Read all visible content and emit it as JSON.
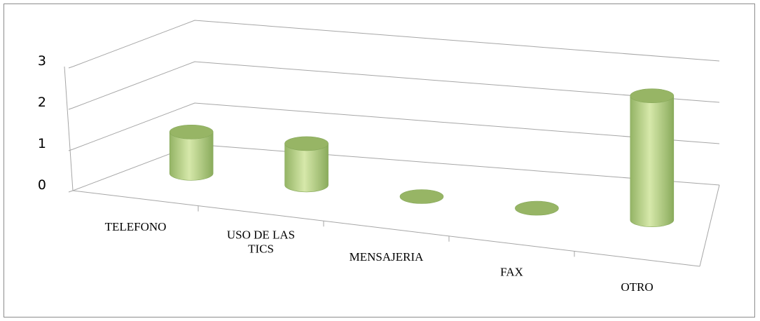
{
  "chart_data": {
    "type": "bar",
    "title": "",
    "xlabel": "",
    "ylabel": "",
    "categories": [
      "TELEFONO",
      "USO DE LAS TICS",
      "MENSAJERIA",
      "FAX",
      "OTRO"
    ],
    "category_label_lines": [
      [
        "TELEFONO"
      ],
      [
        "USO DE LAS",
        "TICS"
      ],
      [
        "MENSAJERIA"
      ],
      [
        "FAX"
      ],
      [
        "OTRO"
      ]
    ],
    "values": [
      1,
      1,
      0,
      0,
      3
    ],
    "ylim": [
      0,
      3
    ],
    "yticks": [
      "0",
      "1",
      "2",
      "3"
    ],
    "grid": true,
    "legend": "none",
    "style": "3d-cylinder",
    "colors": {
      "bar_light": "#d3e5a6",
      "bar_dark": "#8fb060",
      "bar_top": "#97b565",
      "grid": "#a6a6a6"
    }
  }
}
